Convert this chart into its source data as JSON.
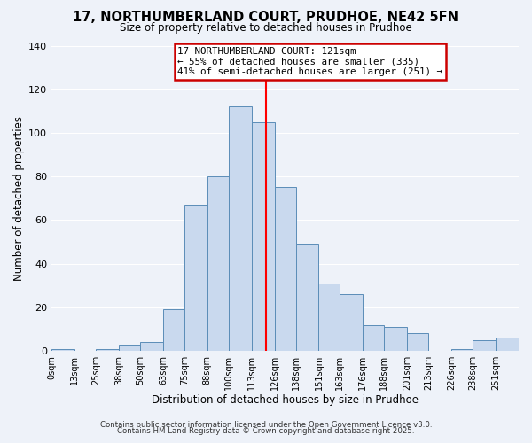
{
  "title_line1": "17, NORTHUMBERLAND COURT, PRUDHOE, NE42 5FN",
  "title_line2": "Size of property relative to detached houses in Prudhoe",
  "xlabel": "Distribution of detached houses by size in Prudhoe",
  "ylabel": "Number of detached properties",
  "bar_color": "#c9d9ee",
  "bar_edge_color": "#5b8db8",
  "background_color": "#eef2f9",
  "grid_color": "white",
  "red_line_x": 121,
  "annotation_text_line1": "17 NORTHUMBERLAND COURT: 121sqm",
  "annotation_text_line2": "← 55% of detached houses are smaller (335)",
  "annotation_text_line3": "41% of semi-detached houses are larger (251) →",
  "annotation_box_color": "#cc0000",
  "footer_line1": "Contains HM Land Registry data © Crown copyright and database right 2025.",
  "footer_line2": "Contains public sector information licensed under the Open Government Licence v3.0.",
  "bin_edges": [
    0,
    13,
    25,
    38,
    50,
    63,
    75,
    88,
    100,
    113,
    126,
    138,
    151,
    163,
    176,
    188,
    201,
    213,
    226,
    238,
    251,
    264
  ],
  "bin_labels": [
    "0sqm",
    "13sqm",
    "25sqm",
    "38sqm",
    "50sqm",
    "63sqm",
    "75sqm",
    "88sqm",
    "100sqm",
    "113sqm",
    "126sqm",
    "138sqm",
    "151sqm",
    "163sqm",
    "176sqm",
    "188sqm",
    "201sqm",
    "213sqm",
    "226sqm",
    "238sqm",
    "251sqm"
  ],
  "counts": [
    1,
    0,
    1,
    3,
    4,
    19,
    67,
    80,
    112,
    105,
    75,
    49,
    31,
    26,
    12,
    11,
    8,
    0,
    1,
    5,
    6
  ],
  "ylim": [
    0,
    140
  ],
  "yticks": [
    0,
    20,
    40,
    60,
    80,
    100,
    120,
    140
  ]
}
